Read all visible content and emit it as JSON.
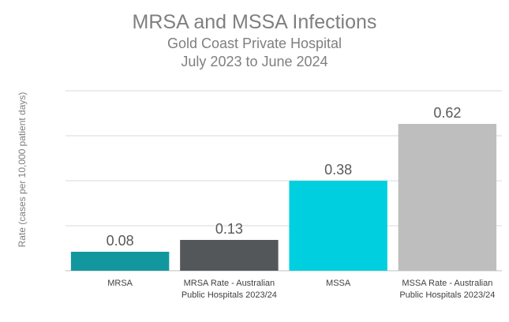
{
  "chart_data": {
    "type": "bar",
    "title": "MRSA and MSSA Infections",
    "subtitle_line1": "Gold Coast Private Hospital",
    "subtitle_line2": "July 2023 to June 2024",
    "ylabel": "Rate (cases  per 10,000 patient days)",
    "xlabel": "",
    "categories": [
      [
        "MRSA"
      ],
      [
        "MRSA Rate - Australian",
        "Public Hospitals 2023/24"
      ],
      [
        "MSSA"
      ],
      [
        "MSSA Rate - Australian",
        "Public Hospitals 2023/24"
      ]
    ],
    "values": [
      0.08,
      0.13,
      0.38,
      0.62
    ],
    "value_labels": [
      "0.08",
      "0.13",
      "0.38",
      "0.62"
    ],
    "colors": [
      "#12979f",
      "#545759",
      "#00cfe0",
      "#bebebe"
    ],
    "ylim": [
      0,
      0.76
    ],
    "gridline_values": [
      0.19,
      0.38,
      0.57,
      0.76
    ],
    "grid": true,
    "legend": "none"
  }
}
